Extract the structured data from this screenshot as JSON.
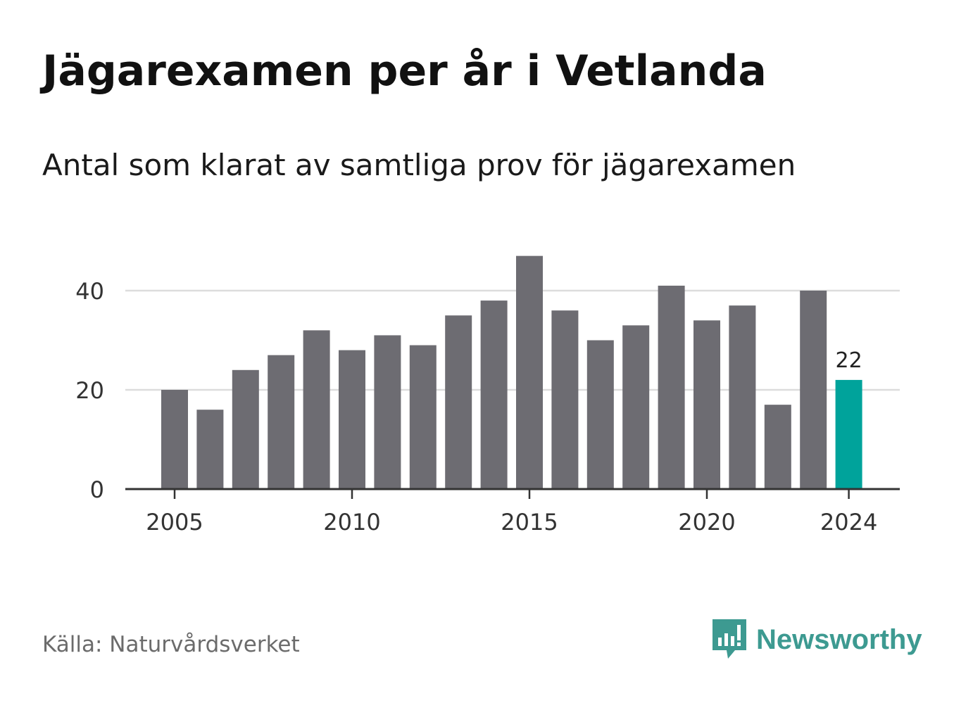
{
  "title": "Jägarexamen per år i Vetlanda",
  "subtitle": "Antal som klarat av samtliga prov för jägarexamen",
  "source": "Källa: Naturvårdsverket",
  "brand": {
    "name": "Newsworthy",
    "color": "#3d9a91"
  },
  "colors": {
    "bar": "#6d6c72",
    "highlight": "#00a39b",
    "grid": "#dcdcdc",
    "axis": "#333333"
  },
  "chart_data": {
    "type": "bar",
    "x": [
      2005,
      2006,
      2007,
      2008,
      2009,
      2010,
      2011,
      2012,
      2013,
      2014,
      2015,
      2016,
      2017,
      2018,
      2019,
      2020,
      2021,
      2022,
      2023,
      2024
    ],
    "values": [
      20,
      16,
      24,
      27,
      32,
      28,
      31,
      29,
      35,
      38,
      47,
      36,
      30,
      33,
      41,
      34,
      37,
      17,
      40,
      22
    ],
    "highlight_index": 19,
    "highlight_label": "22",
    "x_ticks": [
      "2005",
      "2010",
      "2015",
      "2020",
      "2024"
    ],
    "y_ticks": [
      0,
      20,
      40
    ],
    "ylim": [
      0,
      50
    ],
    "grid": true
  }
}
